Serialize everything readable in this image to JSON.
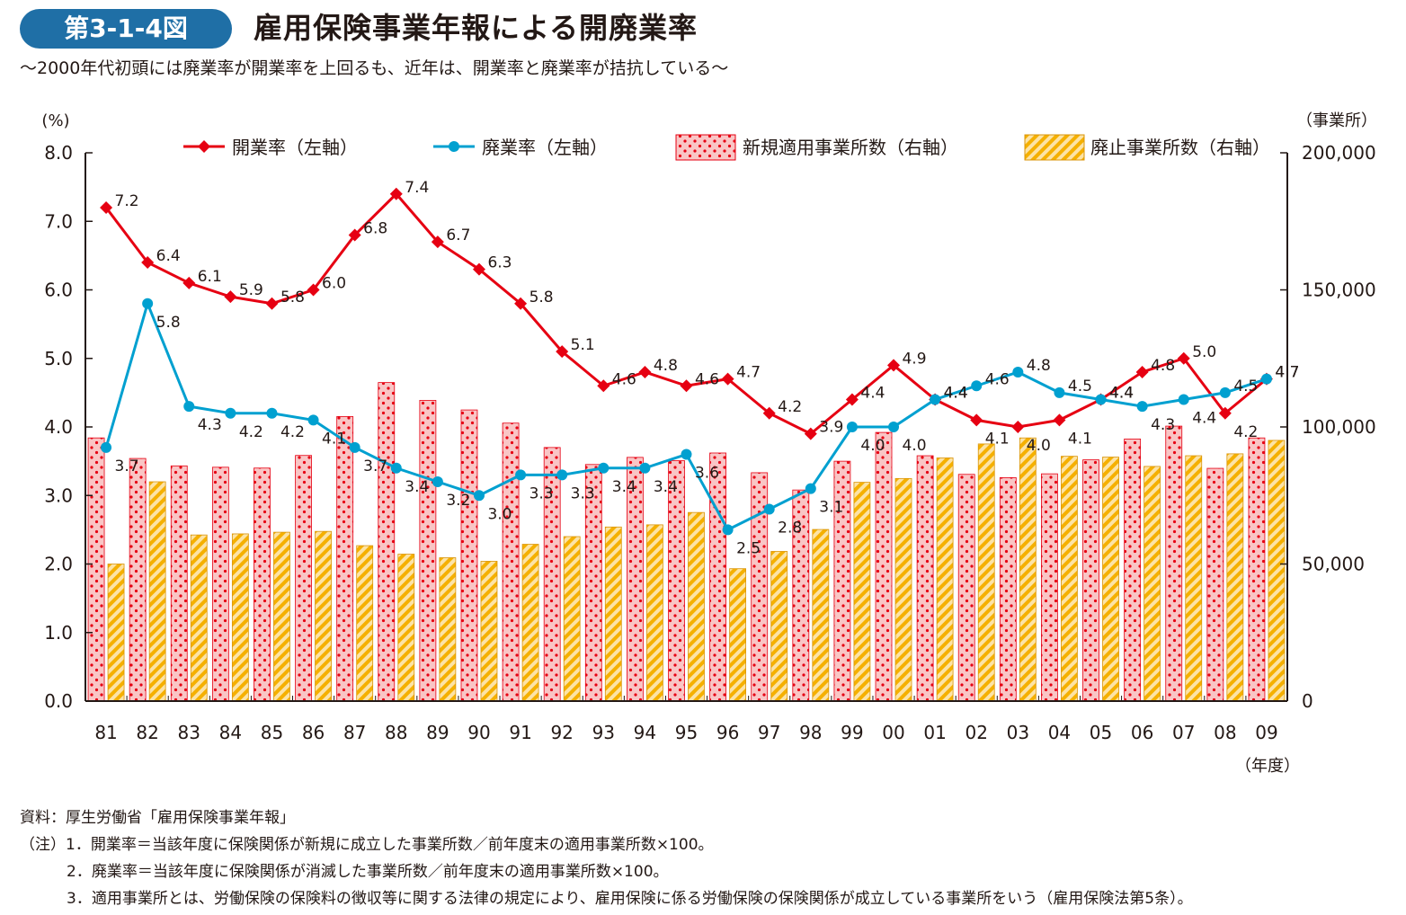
{
  "figure": {
    "badge": "第3-1-4図",
    "title": "雇用保険事業年報による開廃業率",
    "subtitle": "～2000年代初頭には廃業率が開業率を上回るも、近年は、開業率と廃業率が拮抗している～"
  },
  "chart_data": {
    "type": "bar",
    "categories": [
      "81",
      "82",
      "83",
      "84",
      "85",
      "86",
      "87",
      "88",
      "89",
      "90",
      "91",
      "92",
      "93",
      "94",
      "95",
      "96",
      "97",
      "98",
      "99",
      "00",
      "01",
      "02",
      "03",
      "04",
      "05",
      "06",
      "07",
      "08",
      "09"
    ],
    "y_left": {
      "unit": "(%)",
      "ticks": [
        "0.0",
        "1.0",
        "2.0",
        "3.0",
        "4.0",
        "5.0",
        "6.0",
        "7.0",
        "8.0"
      ],
      "range": [
        0,
        8
      ]
    },
    "y_right": {
      "unit": "（事業所）",
      "ticks": [
        "0",
        "50,000",
        "100,000",
        "150,000",
        "200,000"
      ],
      "range": [
        0,
        200000
      ]
    },
    "x_unit": "（年度）",
    "legend_position": "top",
    "grid": false,
    "series": [
      {
        "name": "開業率（左軸）",
        "kind": "line",
        "axis": "left",
        "color": "#e60012",
        "marker": "diamond",
        "values": [
          7.2,
          6.4,
          6.1,
          5.9,
          5.8,
          6.0,
          6.8,
          7.4,
          6.7,
          6.3,
          5.8,
          5.1,
          4.6,
          4.8,
          4.6,
          4.7,
          4.2,
          3.9,
          4.4,
          4.9,
          4.4,
          4.1,
          4.0,
          4.1,
          4.4,
          4.8,
          5.0,
          4.2,
          4.7
        ],
        "labels": [
          "7.2",
          "6.4",
          "6.1",
          "5.9",
          "5.8",
          "6.0",
          "6.8",
          "7.4",
          "6.7",
          "6.3",
          "5.8",
          "5.1",
          "4.6",
          "4.8",
          "4.6",
          "4.7",
          "4.2",
          "3.9",
          "4.4",
          "4.9",
          "4.4",
          "4.1",
          "4.0",
          "4.1",
          "4.4",
          "4.8",
          "5.0",
          "4.2",
          "4.7"
        ]
      },
      {
        "name": "廃業率（左軸）",
        "kind": "line",
        "axis": "left",
        "color": "#00a0d0",
        "marker": "circle",
        "values": [
          3.7,
          5.8,
          4.3,
          4.2,
          4.2,
          4.1,
          3.7,
          3.4,
          3.2,
          3.0,
          3.3,
          3.3,
          3.4,
          3.4,
          3.6,
          2.5,
          2.8,
          3.1,
          4.0,
          4.0,
          4.4,
          4.6,
          4.8,
          4.5,
          4.4,
          4.3,
          4.4,
          4.5,
          4.7
        ],
        "labels": [
          "3.7",
          "5.8",
          "4.3",
          "4.2",
          "4.2",
          "4.1",
          "3.7",
          "3.4",
          "3.2",
          "3.0",
          "3.3",
          "3.3",
          "3.4",
          "3.4",
          "3.6",
          "2.5",
          "2.8",
          "3.1",
          "4.0",
          "4.0",
          "4.4",
          "4.6",
          "4.8",
          "4.5",
          "4.4",
          "4.3",
          "4.4",
          "4.5",
          "4.7"
        ]
      },
      {
        "name": "新規適用事業所数（右軸）",
        "kind": "bar",
        "axis": "right",
        "color": "#f7b7b7",
        "pattern": "dots",
        "values": [
          96000,
          88500,
          85800,
          85300,
          85000,
          89600,
          103800,
          116200,
          109700,
          106200,
          101400,
          92500,
          86300,
          88900,
          87700,
          90500,
          83300,
          77000,
          87500,
          98000,
          89500,
          82700,
          81500,
          82900,
          88000,
          95600,
          100300,
          84900,
          96000
        ]
      },
      {
        "name": "廃止事業所数（右軸）",
        "kind": "bar",
        "axis": "right",
        "color": "#f5b23c",
        "pattern": "stripes",
        "values": [
          50000,
          80000,
          60600,
          61000,
          61600,
          61900,
          56700,
          53600,
          52300,
          51000,
          57200,
          60000,
          63500,
          64300,
          68800,
          48300,
          54600,
          62600,
          79800,
          81200,
          88700,
          93800,
          96000,
          89300,
          89000,
          85600,
          89500,
          90200,
          95100
        ]
      }
    ]
  },
  "notes": {
    "source": "資料：厚生労働省「雇用保険事業年報」",
    "note1": "（注）1．開業率＝当該年度に保険関係が新規に成立した事業所数／前年度末の適用事業所数×100。",
    "note2": "2．廃業率＝当該年度に保険関係が消滅した事業所数／前年度末の適用事業所数×100。",
    "note3": "3．適用事業所とは、労働保険の保険料の徴収等に関する法律の規定により、雇用保険に係る労働保険の保険関係が成立している事業所をいう（雇用保険法第5条）。"
  }
}
